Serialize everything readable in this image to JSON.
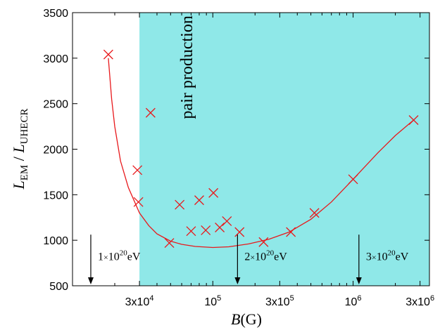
{
  "chart_data": {
    "type": "scatter",
    "xscale": "log",
    "xlim": [
      10000,
      3500000
    ],
    "ylim": [
      500,
      3500
    ],
    "xlabel": {
      "main": "B",
      "unit": "(G)"
    },
    "ylabel": {
      "main": "L",
      "num_sub": "EM",
      "sep": " / ",
      "den": "L",
      "den_sub": "UHECR"
    },
    "yticks": [
      500,
      1000,
      1500,
      2000,
      2500,
      3000,
      3500
    ],
    "xticks": [
      {
        "value": 30000,
        "base": "3x10",
        "exp": "4"
      },
      {
        "value": 100000,
        "base": "10",
        "exp": "5"
      },
      {
        "value": 300000,
        "base": "3x10",
        "exp": "5"
      },
      {
        "value": 1000000,
        "base": "10",
        "exp": "6"
      },
      {
        "value": 3000000,
        "base": "3x10",
        "exp": "6"
      }
    ],
    "shaded_region": {
      "label": "pair production",
      "x_from": 30000,
      "color": "#8fe8e8"
    },
    "marker_color": "#e8191c",
    "points": [
      {
        "x": 18000,
        "y": 3040
      },
      {
        "x": 29000,
        "y": 1770
      },
      {
        "x": 29500,
        "y": 1420
      },
      {
        "x": 36000,
        "y": 2400
      },
      {
        "x": 49000,
        "y": 970
      },
      {
        "x": 58000,
        "y": 1390
      },
      {
        "x": 70000,
        "y": 1100
      },
      {
        "x": 80000,
        "y": 1440
      },
      {
        "x": 89000,
        "y": 1110
      },
      {
        "x": 101000,
        "y": 1520
      },
      {
        "x": 112000,
        "y": 1140
      },
      {
        "x": 126000,
        "y": 1210
      },
      {
        "x": 155000,
        "y": 1090
      },
      {
        "x": 230000,
        "y": 980
      },
      {
        "x": 360000,
        "y": 1090
      },
      {
        "x": 530000,
        "y": 1300
      },
      {
        "x": 1000000,
        "y": 1670
      },
      {
        "x": 2700000,
        "y": 2320
      }
    ],
    "fit_curve": [
      {
        "x": 18000,
        "y": 3000
      },
      {
        "x": 19000,
        "y": 2550
      },
      {
        "x": 20000,
        "y": 2250
      },
      {
        "x": 22000,
        "y": 1870
      },
      {
        "x": 25000,
        "y": 1580
      },
      {
        "x": 30000,
        "y": 1300
      },
      {
        "x": 35000,
        "y": 1160
      },
      {
        "x": 40000,
        "y": 1070
      },
      {
        "x": 50000,
        "y": 990
      },
      {
        "x": 60000,
        "y": 955
      },
      {
        "x": 75000,
        "y": 932
      },
      {
        "x": 100000,
        "y": 920
      },
      {
        "x": 130000,
        "y": 928
      },
      {
        "x": 180000,
        "y": 960
      },
      {
        "x": 250000,
        "y": 1010
      },
      {
        "x": 350000,
        "y": 1090
      },
      {
        "x": 500000,
        "y": 1230
      },
      {
        "x": 700000,
        "y": 1420
      },
      {
        "x": 1000000,
        "y": 1670
      },
      {
        "x": 1500000,
        "y": 1960
      },
      {
        "x": 2000000,
        "y": 2150
      },
      {
        "x": 2700000,
        "y": 2320
      }
    ],
    "annotations": [
      {
        "x": 13500,
        "base": "1",
        "times": "×",
        "mant": "10",
        "exp": "20",
        "unit": "eV"
      },
      {
        "x": 150000,
        "base": "2",
        "times": "×",
        "mant": "10",
        "exp": "20",
        "unit": "eV"
      },
      {
        "x": 1100000,
        "base": "3",
        "times": "×",
        "mant": "10",
        "exp": "20",
        "unit": "eV"
      }
    ]
  }
}
